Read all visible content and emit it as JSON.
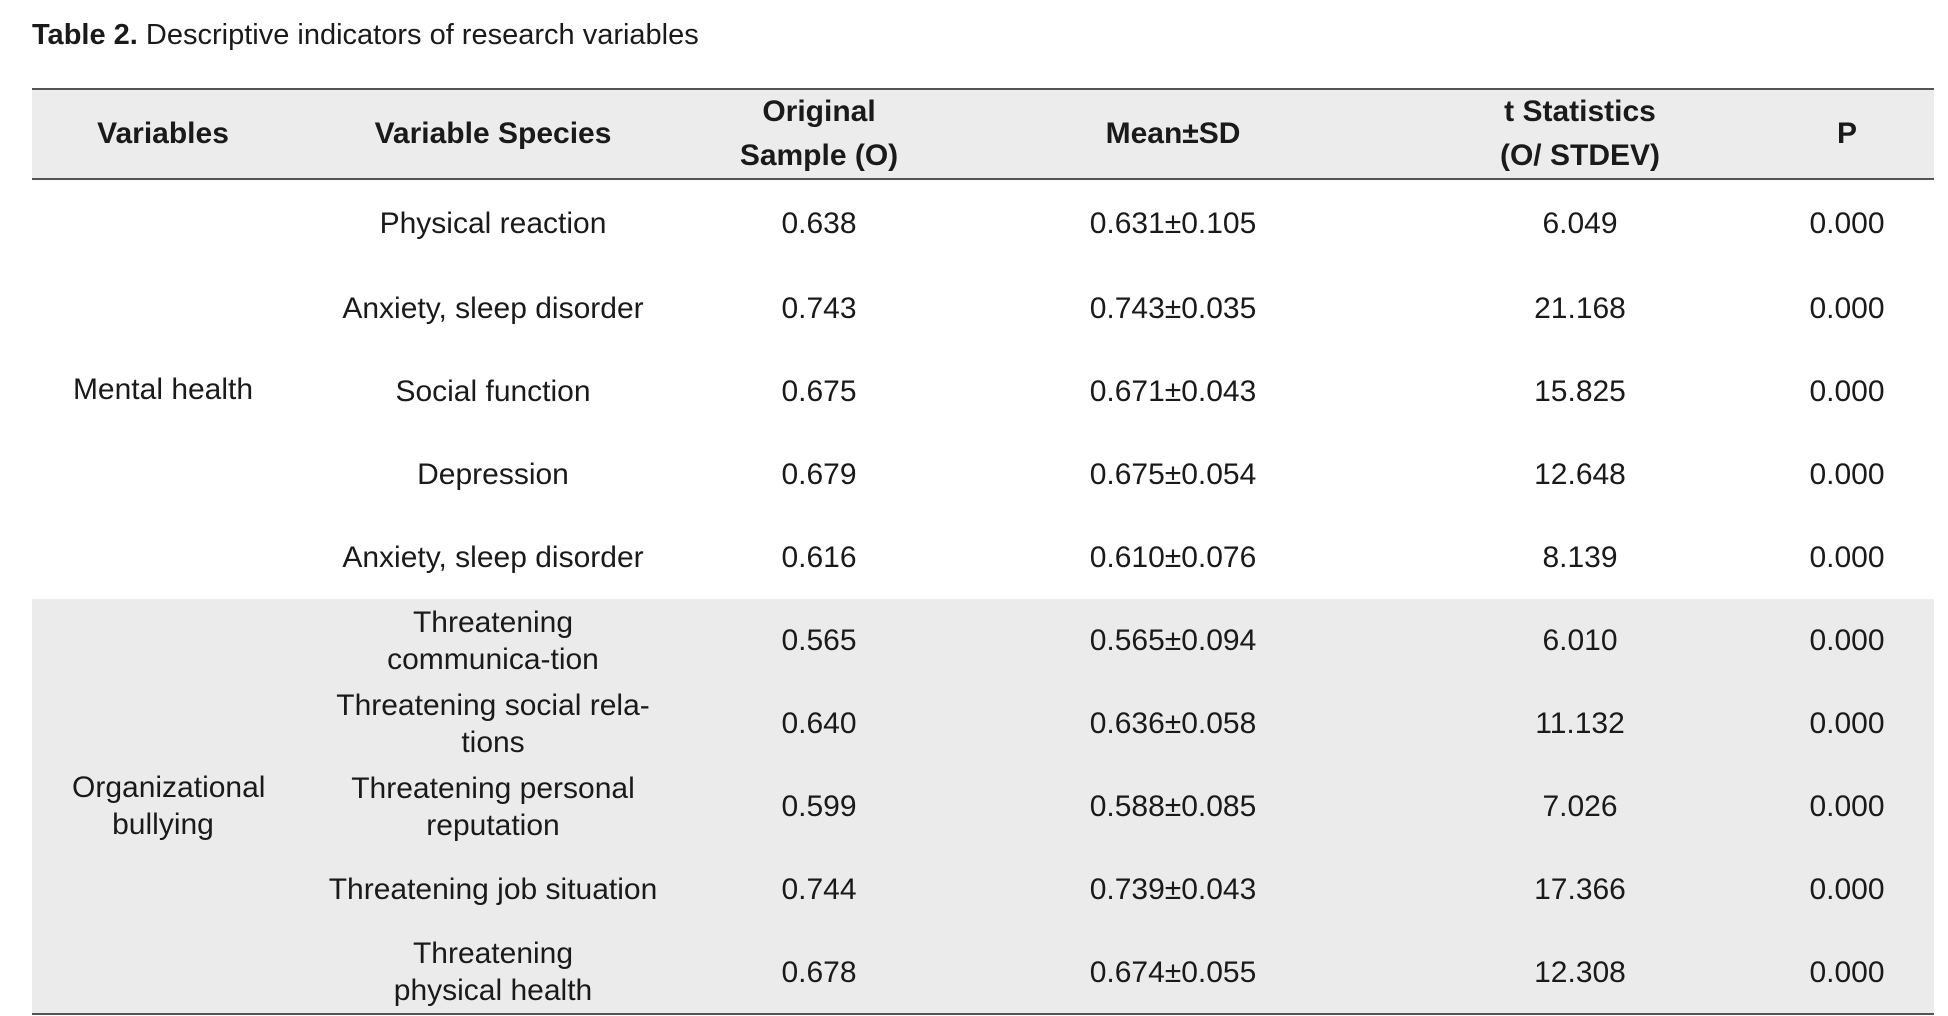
{
  "caption": {
    "label": "Table 2.",
    "text": "Descriptive indicators of research variables"
  },
  "table": {
    "headers": [
      "Variables",
      "Variable Species",
      "Original Sample (O)",
      "Mean±SD",
      "t Statistics (O/ STDEV)",
      "P"
    ],
    "groups": [
      {
        "variable": "Mental health",
        "rows": [
          {
            "species": "Physical reaction",
            "original": "0.638",
            "mean_sd": "0.631±0.105",
            "t": "6.049",
            "p": "0.000"
          },
          {
            "species": "Anxiety, sleep disorder",
            "original": "0.743",
            "mean_sd": "0.743±0.035",
            "t": "21.168",
            "p": "0.000"
          },
          {
            "species": "Social function",
            "original": "0.675",
            "mean_sd": "0.671±0.043",
            "t": "15.825",
            "p": "0.000"
          },
          {
            "species": "Depression",
            "original": "0.679",
            "mean_sd": "0.675±0.054",
            "t": "12.648",
            "p": "0.000"
          },
          {
            "species": "Anxiety, sleep disorder",
            "original": "0.616",
            "mean_sd": "0.610±0.076",
            "t": "8.139",
            "p": "0.000"
          }
        ]
      },
      {
        "variable": "Organizational bullying",
        "rows": [
          {
            "species": "Threatening communica-tion",
            "original": "0.565",
            "mean_sd": "0.565±0.094",
            "t": "6.010",
            "p": "0.000"
          },
          {
            "species": "Threatening social rela-tions",
            "original": "0.640",
            "mean_sd": "0.636±0.058",
            "t": "11.132",
            "p": "0.000"
          },
          {
            "species": "Threatening personal reputation",
            "original": "0.599",
            "mean_sd": "0.588±0.085",
            "t": "7.026",
            "p": "0.000"
          },
          {
            "species": "Threatening job situation",
            "original": "0.744",
            "mean_sd": "0.739±0.043",
            "t": "17.366",
            "p": "0.000"
          },
          {
            "species": "Threatening physical health",
            "original": "0.678",
            "mean_sd": "0.674±0.055",
            "t": "12.308",
            "p": "0.000"
          }
        ]
      }
    ]
  }
}
